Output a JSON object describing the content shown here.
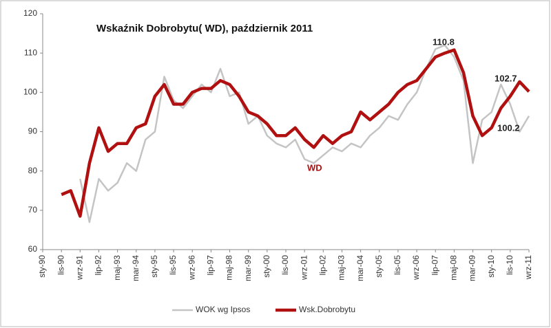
{
  "chart_data": {
    "type": "line",
    "title": "Wskaźnik Dobrobytu( WD), październik 2011",
    "annotations": [
      "110.8",
      "102.7",
      "100.2",
      "WD"
    ],
    "categories": [
      "sty-90",
      null,
      "lis-90",
      null,
      "wrz-91",
      null,
      "lip-92",
      null,
      "maj-93",
      null,
      "mar-94",
      null,
      "sty-95",
      null,
      "lis-95",
      null,
      "wrz-96",
      null,
      "lip-97",
      null,
      "maj-98",
      null,
      "mar-99",
      null,
      "sty-00",
      null,
      "lis-00",
      null,
      "wrz-01",
      null,
      "lip-02",
      null,
      "maj-03",
      null,
      "mar-04",
      null,
      "sty-05",
      null,
      "lis-05",
      null,
      "wrz-06",
      null,
      "lip-07",
      null,
      "maj-08",
      null,
      "mar-09",
      null,
      "sty-10",
      null,
      "lis-10",
      null,
      "wrz-11"
    ],
    "series": [
      {
        "name": "WOK wg Ipsos",
        "color": "#c4c4c4",
        "width": 2.5,
        "values": [
          null,
          null,
          null,
          null,
          78,
          67,
          78,
          75,
          77,
          82,
          80,
          88,
          90,
          104,
          98,
          96,
          99,
          102,
          100,
          106,
          99,
          100,
          92,
          94,
          89,
          87,
          86,
          88,
          83,
          82,
          84,
          86,
          85,
          87,
          86,
          89,
          91,
          94,
          93,
          97,
          100,
          106,
          111,
          112,
          109,
          103,
          82,
          93,
          95,
          102,
          97,
          90,
          94
        ]
      },
      {
        "name": "Wsk.Dobrobytu",
        "color": "#b01010",
        "width": 4.5,
        "values": [
          null,
          null,
          74,
          75,
          68.5,
          82,
          91,
          85,
          87,
          87,
          91,
          92,
          99,
          102,
          97,
          97,
          100,
          101,
          101,
          103,
          102,
          99,
          95,
          94,
          92,
          89,
          89,
          91,
          88,
          86,
          89,
          87,
          89,
          90,
          95,
          93,
          95,
          97,
          100,
          102,
          103,
          106,
          109,
          110,
          110.8,
          105,
          94,
          89,
          91,
          96,
          99,
          102.7,
          100.2
        ]
      }
    ],
    "ylim": [
      60,
      120
    ],
    "yticks": [
      60,
      70,
      80,
      90,
      100,
      110,
      120
    ],
    "grid": false
  }
}
